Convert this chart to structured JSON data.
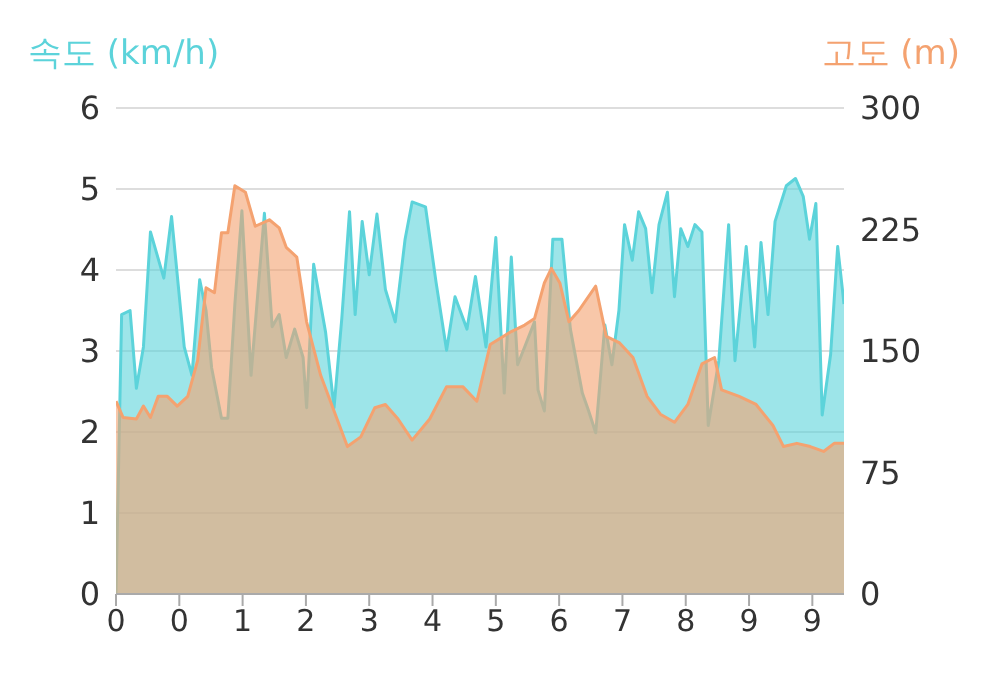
{
  "chart_data": {
    "type": "area",
    "ylabel": "속도 (km/h)",
    "y2label": "고도 (m)",
    "xlim": [
      -0.45,
      9.9
    ],
    "xticks": [
      {
        "value": -0.45,
        "label": "0"
      },
      {
        "value": 0.45,
        "label": "0"
      },
      {
        "value": 1.35,
        "label": "1"
      },
      {
        "value": 2.25,
        "label": "2"
      },
      {
        "value": 3.15,
        "label": "3"
      },
      {
        "value": 4.05,
        "label": "4"
      },
      {
        "value": 4.95,
        "label": "5"
      },
      {
        "value": 5.85,
        "label": "6"
      },
      {
        "value": 6.75,
        "label": "7"
      },
      {
        "value": 7.65,
        "label": "8"
      },
      {
        "value": 8.55,
        "label": "9"
      },
      {
        "value": 9.45,
        "label": "9"
      }
    ],
    "ylim": [
      0,
      6
    ],
    "yticks": [
      0,
      1,
      2,
      3,
      4,
      5,
      6
    ],
    "y2lim": [
      0,
      300
    ],
    "y2ticks": [
      0,
      75,
      150,
      225,
      300
    ],
    "grid": "y",
    "marker": "none",
    "line_style": "solid",
    "series": [
      {
        "color": "#5cd3da",
        "x": [
          -0.45,
          -0.37,
          -0.25,
          -0.16,
          -0.06,
          0.04,
          0.23,
          0.34,
          0.52,
          0.63,
          0.74,
          0.83,
          0.91,
          1.05,
          1.14,
          1.24,
          1.34,
          1.47,
          1.66,
          1.77,
          1.87,
          1.97,
          2.09,
          2.21,
          2.26,
          2.36,
          2.53,
          2.65,
          2.76,
          2.87,
          2.95,
          3.05,
          3.15,
          3.26,
          3.38,
          3.52,
          3.66,
          3.76,
          3.95,
          4.1,
          4.25,
          4.37,
          4.54,
          4.66,
          4.81,
          4.95,
          5.07,
          5.17,
          5.26,
          5.36,
          5.5,
          5.55,
          5.64,
          5.76,
          5.89,
          6.01,
          6.18,
          6.27,
          6.37,
          6.5,
          6.6,
          6.7,
          6.78,
          6.89,
          6.98,
          7.08,
          7.17,
          7.27,
          7.39,
          7.49,
          7.58,
          7.68,
          7.78,
          7.88,
          7.97,
          8.12,
          8.26,
          8.35,
          8.51,
          8.63,
          8.72,
          8.82,
          8.92,
          9.08,
          9.21,
          9.32,
          9.41,
          9.5,
          9.59,
          9.71,
          9.81,
          9.9
        ],
        "values": [
          0,
          3.45,
          3.5,
          2.54,
          3.05,
          4.47,
          3.9,
          4.66,
          3.05,
          2.7,
          3.88,
          3.5,
          2.79,
          2.17,
          2.17,
          3.58,
          4.73,
          2.7,
          4.7,
          3.3,
          3.45,
          2.92,
          3.27,
          2.92,
          2.3,
          4.07,
          3.23,
          2.3,
          3.4,
          4.72,
          3.45,
          4.6,
          3.94,
          4.69,
          3.76,
          3.36,
          4.38,
          4.84,
          4.78,
          3.85,
          3.01,
          3.67,
          3.27,
          3.92,
          3.05,
          4.4,
          2.48,
          4.16,
          2.83,
          3.05,
          3.36,
          2.52,
          2.26,
          4.38,
          4.38,
          3.27,
          2.48,
          2.26,
          1.99,
          3.32,
          2.83,
          3.5,
          4.56,
          4.12,
          4.72,
          4.51,
          3.72,
          4.56,
          4.96,
          3.67,
          4.51,
          4.29,
          4.56,
          4.47,
          2.08,
          2.88,
          4.56,
          2.88,
          4.29,
          3.05,
          4.34,
          3.45,
          4.6,
          5.04,
          5.13,
          4.91,
          4.38,
          4.82,
          2.21,
          2.96,
          4.29,
          3.58
        ]
      },
      {
        "color": "#f4a270",
        "axis": "y2",
        "x": [
          -0.45,
          -0.35,
          -0.16,
          -0.06,
          0.04,
          0.15,
          0.28,
          0.42,
          0.57,
          0.71,
          0.83,
          0.95,
          1.05,
          1.14,
          1.24,
          1.39,
          1.53,
          1.73,
          1.87,
          1.97,
          2.12,
          2.26,
          2.46,
          2.65,
          2.84,
          3.03,
          3.23,
          3.38,
          3.56,
          3.76,
          4.01,
          4.25,
          4.48,
          4.68,
          4.87,
          5.17,
          5.36,
          5.5,
          5.64,
          5.74,
          5.86,
          5.99,
          6.13,
          6.37,
          6.52,
          6.71,
          6.9,
          7.1,
          7.29,
          7.49,
          7.68,
          7.88,
          8.06,
          8.16,
          8.41,
          8.65,
          8.89,
          9.04,
          9.23,
          9.42,
          9.61,
          9.76,
          9.9
        ],
        "values": [
          119,
          109,
          108,
          116,
          109,
          122,
          122,
          116,
          122,
          144,
          189,
          186,
          223,
          223,
          252,
          248,
          227,
          231,
          226,
          214,
          208,
          168,
          135,
          113,
          91,
          97,
          115,
          117,
          108,
          95,
          108,
          128,
          128,
          119,
          154,
          162,
          166,
          170,
          192,
          201,
          192,
          168,
          175,
          190,
          159,
          155,
          146,
          122,
          111,
          106,
          117,
          142,
          146,
          126,
          122,
          117,
          104,
          91,
          93,
          91,
          88,
          93,
          93
        ]
      }
    ]
  }
}
